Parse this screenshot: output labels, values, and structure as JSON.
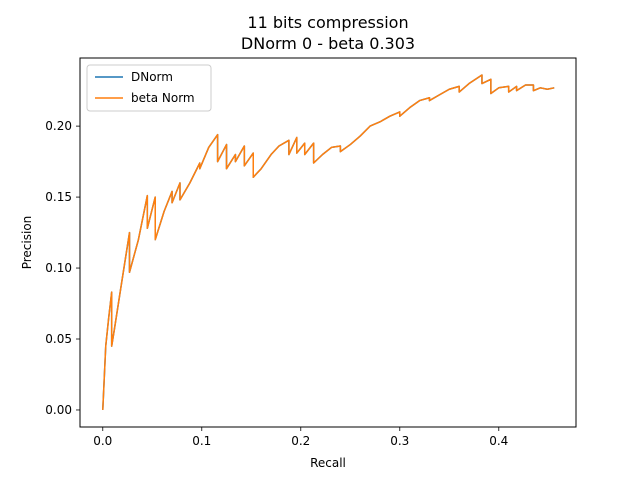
{
  "chart_data": {
    "type": "line",
    "title": "11 bits compression",
    "subtitle": "DNorm 0 - beta 0.303",
    "xlabel": "Recall",
    "ylabel": "Precision",
    "xlim": [
      -0.023,
      0.478
    ],
    "ylim": [
      -0.012,
      0.248
    ],
    "xticks": [
      {
        "value": 0.0,
        "label": "0.0"
      },
      {
        "value": 0.1,
        "label": "0.1"
      },
      {
        "value": 0.2,
        "label": "0.2"
      },
      {
        "value": 0.3,
        "label": "0.3"
      },
      {
        "value": 0.4,
        "label": "0.4"
      }
    ],
    "yticks": [
      {
        "value": 0.0,
        "label": "0.00"
      },
      {
        "value": 0.05,
        "label": "0.05"
      },
      {
        "value": 0.1,
        "label": "0.10"
      },
      {
        "value": 0.15,
        "label": "0.15"
      },
      {
        "value": 0.2,
        "label": "0.20"
      }
    ],
    "grid": false,
    "legend_position": "top-left",
    "series": [
      {
        "name": "DNorm",
        "color": "#1f77b4",
        "x": [
          0.0,
          0.003,
          0.006,
          0.009,
          0.009,
          0.012,
          0.018,
          0.027,
          0.027,
          0.036,
          0.045,
          0.045,
          0.053,
          0.053,
          0.062,
          0.07,
          0.07,
          0.078,
          0.078,
          0.088,
          0.098,
          0.098,
          0.107,
          0.116,
          0.116,
          0.125,
          0.125,
          0.134,
          0.134,
          0.143,
          0.143,
          0.152,
          0.152,
          0.16,
          0.17,
          0.178,
          0.188,
          0.188,
          0.196,
          0.196,
          0.204,
          0.204,
          0.213,
          0.213,
          0.222,
          0.231,
          0.24,
          0.24,
          0.25,
          0.26,
          0.27,
          0.28,
          0.29,
          0.3,
          0.3,
          0.31,
          0.32,
          0.33,
          0.33,
          0.34,
          0.35,
          0.36,
          0.36,
          0.37,
          0.383,
          0.383,
          0.392,
          0.392,
          0.4,
          0.41,
          0.41,
          0.418,
          0.418,
          0.427,
          0.435,
          0.435,
          0.442,
          0.449,
          0.456
        ],
        "y": [
          0.0,
          0.045,
          0.065,
          0.083,
          0.045,
          0.058,
          0.085,
          0.125,
          0.097,
          0.12,
          0.151,
          0.128,
          0.15,
          0.12,
          0.14,
          0.154,
          0.146,
          0.16,
          0.148,
          0.16,
          0.174,
          0.17,
          0.185,
          0.194,
          0.175,
          0.187,
          0.17,
          0.18,
          0.175,
          0.186,
          0.172,
          0.181,
          0.164,
          0.17,
          0.18,
          0.186,
          0.19,
          0.18,
          0.192,
          0.181,
          0.188,
          0.18,
          0.188,
          0.174,
          0.18,
          0.185,
          0.186,
          0.182,
          0.187,
          0.193,
          0.2,
          0.203,
          0.207,
          0.21,
          0.207,
          0.213,
          0.218,
          0.22,
          0.218,
          0.222,
          0.226,
          0.228,
          0.224,
          0.23,
          0.236,
          0.23,
          0.233,
          0.223,
          0.227,
          0.228,
          0.224,
          0.228,
          0.225,
          0.229,
          0.229,
          0.225,
          0.227,
          0.226,
          0.227
        ]
      },
      {
        "name": "beta Norm",
        "color": "#ff7f0e",
        "x": [
          0.0,
          0.003,
          0.006,
          0.009,
          0.009,
          0.012,
          0.018,
          0.027,
          0.027,
          0.036,
          0.045,
          0.045,
          0.053,
          0.053,
          0.062,
          0.07,
          0.07,
          0.078,
          0.078,
          0.088,
          0.098,
          0.098,
          0.107,
          0.116,
          0.116,
          0.125,
          0.125,
          0.134,
          0.134,
          0.143,
          0.143,
          0.152,
          0.152,
          0.16,
          0.17,
          0.178,
          0.188,
          0.188,
          0.196,
          0.196,
          0.204,
          0.204,
          0.213,
          0.213,
          0.222,
          0.231,
          0.24,
          0.24,
          0.25,
          0.26,
          0.27,
          0.28,
          0.29,
          0.3,
          0.3,
          0.31,
          0.32,
          0.33,
          0.33,
          0.34,
          0.35,
          0.36,
          0.36,
          0.37,
          0.383,
          0.383,
          0.392,
          0.392,
          0.4,
          0.41,
          0.41,
          0.418,
          0.418,
          0.427,
          0.435,
          0.435,
          0.442,
          0.449,
          0.456
        ],
        "y": [
          0.0,
          0.045,
          0.065,
          0.083,
          0.045,
          0.058,
          0.085,
          0.125,
          0.097,
          0.12,
          0.151,
          0.128,
          0.15,
          0.12,
          0.14,
          0.154,
          0.146,
          0.16,
          0.148,
          0.16,
          0.174,
          0.17,
          0.185,
          0.194,
          0.175,
          0.187,
          0.17,
          0.18,
          0.175,
          0.186,
          0.172,
          0.181,
          0.164,
          0.17,
          0.18,
          0.186,
          0.19,
          0.18,
          0.192,
          0.181,
          0.188,
          0.18,
          0.188,
          0.174,
          0.18,
          0.185,
          0.186,
          0.182,
          0.187,
          0.193,
          0.2,
          0.203,
          0.207,
          0.21,
          0.207,
          0.213,
          0.218,
          0.22,
          0.218,
          0.222,
          0.226,
          0.228,
          0.224,
          0.23,
          0.236,
          0.23,
          0.233,
          0.223,
          0.227,
          0.228,
          0.224,
          0.228,
          0.225,
          0.229,
          0.229,
          0.225,
          0.227,
          0.226,
          0.227
        ]
      }
    ]
  }
}
